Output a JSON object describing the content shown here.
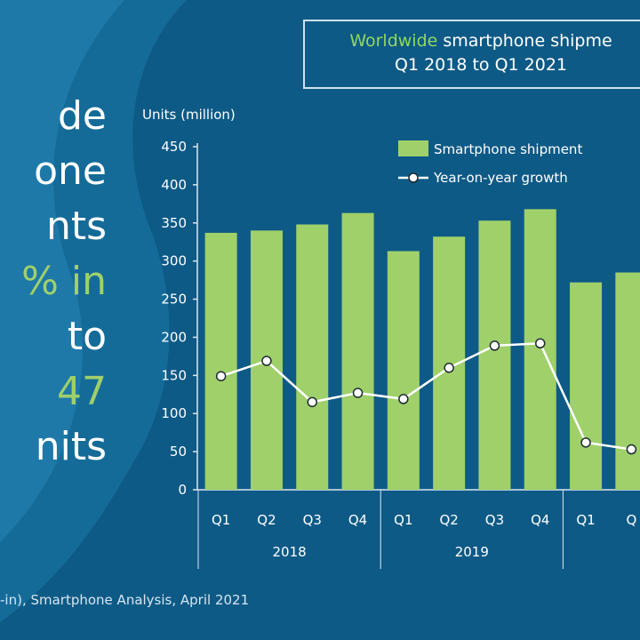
{
  "headline": {
    "lines": [
      "de",
      "one",
      "nts",
      "% in",
      " to",
      "47",
      "nits"
    ]
  },
  "title": {
    "accent": "Worldwide",
    "rest": " smartphone shipme",
    "line2": "Q1 2018 to Q1 2021"
  },
  "source": "-in), Smartphone Analysis, April 2021",
  "colors": {
    "background": "#0e5a86",
    "bar": "#9fd06a",
    "growth_line": "#ffffff",
    "accent_text": "#8fd85f"
  },
  "chart_data": {
    "type": "bar",
    "title": "Worldwide smartphone shipme Q1 2018 to Q1 2021",
    "ylabel": "Units (million)",
    "ylim": [
      0,
      450
    ],
    "yticks": [
      0,
      50,
      100,
      150,
      200,
      250,
      300,
      350,
      400,
      450
    ],
    "categories": [
      "Q1",
      "Q2",
      "Q3",
      "Q4",
      "Q1",
      "Q2",
      "Q3",
      "Q4",
      "Q1",
      "Q"
    ],
    "year_groups": [
      {
        "label": "2018",
        "start": 0,
        "end": 3
      },
      {
        "label": "2019",
        "start": 4,
        "end": 7
      }
    ],
    "series": [
      {
        "name": "Smartphone shipment",
        "kind": "bar",
        "values": [
          337,
          340,
          348,
          363,
          313,
          332,
          353,
          368,
          272,
          285
        ]
      },
      {
        "name": "Year-on-year growth",
        "kind": "line",
        "values": [
          149,
          169,
          115,
          127,
          119,
          160,
          189,
          192,
          62,
          53
        ]
      }
    ],
    "legend": [
      "Smartphone shipment",
      "Year-on-year growth"
    ],
    "legend_position": "top-right",
    "grid": false
  }
}
